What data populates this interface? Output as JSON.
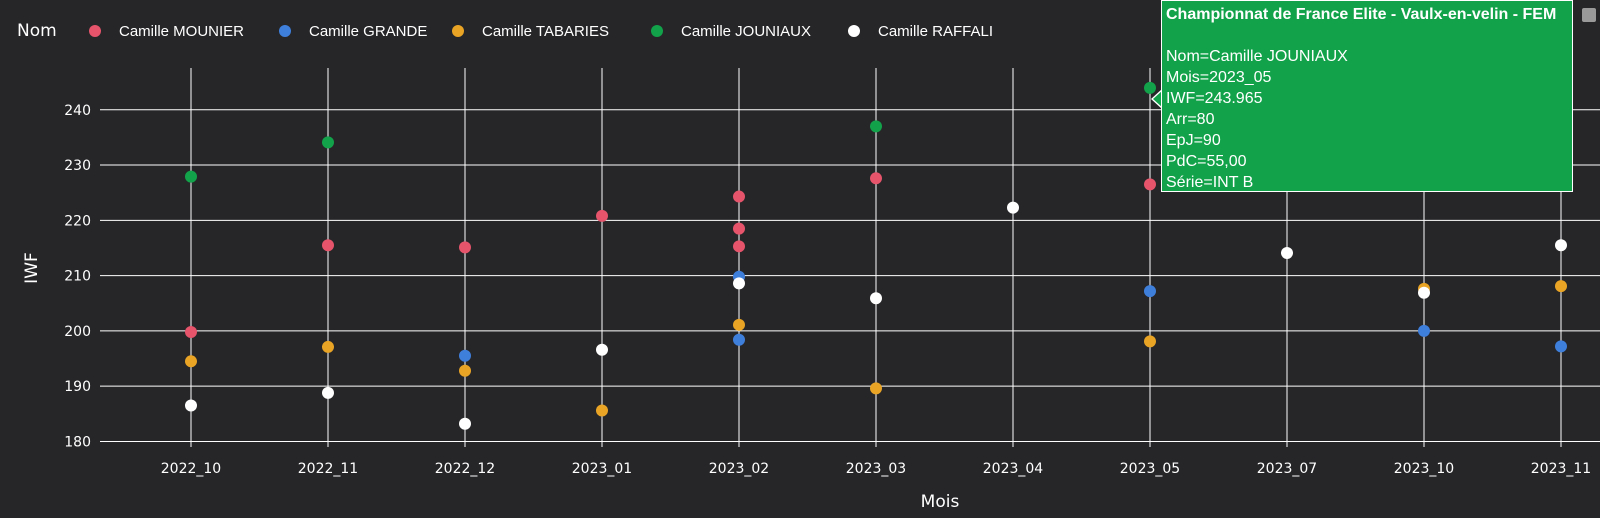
{
  "chart_data": {
    "type": "scatter",
    "legend_title": "Nom",
    "legend_placement": "top",
    "xlabel": "Mois",
    "ylabel": "IWF",
    "x_categories": [
      "2022_10",
      "2022_11",
      "2022_12",
      "2023_01",
      "2023_02",
      "2023_03",
      "2023_04",
      "2023_05",
      "2023_07",
      "2023_10",
      "2023_11"
    ],
    "ylim": [
      179,
      249
    ],
    "yticks": [
      180,
      190,
      200,
      210,
      220,
      230,
      240
    ],
    "grid": true,
    "series": [
      {
        "name": "Camille MOUNIER",
        "color": "#e5546b",
        "points": [
          [
            "2022_10",
            199.8
          ],
          [
            "2022_11",
            215.5
          ],
          [
            "2022_12",
            215.1
          ],
          [
            "2023_01",
            220.8
          ],
          [
            "2023_02",
            224.3
          ],
          [
            "2023_02",
            218.5
          ],
          [
            "2023_02",
            215.3
          ],
          [
            "2023_03",
            227.6
          ],
          [
            "2023_05",
            226.5
          ]
        ]
      },
      {
        "name": "Camille GRANDE",
        "color": "#3f7fdc",
        "points": [
          [
            "2022_12",
            195.5
          ],
          [
            "2023_02",
            209.8
          ],
          [
            "2023_02",
            198.4
          ],
          [
            "2023_05",
            207.2
          ],
          [
            "2023_10",
            200.0
          ],
          [
            "2023_11",
            197.2
          ]
        ]
      },
      {
        "name": "Camille TABARIES",
        "color": "#e9a425",
        "points": [
          [
            "2022_10",
            194.5
          ],
          [
            "2022_11",
            197.1
          ],
          [
            "2022_12",
            192.8
          ],
          [
            "2023_01",
            185.6
          ],
          [
            "2023_02",
            201.1
          ],
          [
            "2023_03",
            189.6
          ],
          [
            "2023_05",
            198.1
          ],
          [
            "2023_10",
            207.6
          ],
          [
            "2023_11",
            208.1
          ]
        ]
      },
      {
        "name": "Camille JOUNIAUX",
        "color": "#12a34a",
        "points": [
          [
            "2022_10",
            227.9
          ],
          [
            "2022_11",
            234.1
          ],
          [
            "2023_03",
            237.0
          ],
          [
            "2023_05",
            243.965
          ]
        ]
      },
      {
        "name": "Camille RAFFALI",
        "color": "#ffffff",
        "points": [
          [
            "2022_10",
            186.5
          ],
          [
            "2022_11",
            188.8
          ],
          [
            "2022_12",
            183.2
          ],
          [
            "2023_01",
            196.6
          ],
          [
            "2023_02",
            208.6
          ],
          [
            "2023_03",
            205.9
          ],
          [
            "2023_04",
            222.3
          ],
          [
            "2023_07",
            214.1
          ],
          [
            "2023_10",
            206.9
          ],
          [
            "2023_11",
            215.5
          ]
        ]
      }
    ]
  },
  "tooltip": {
    "title": "Championnat de France Elite - Vaulx-en-velin -  FEM",
    "lines": [
      "Nom=Camille JOUNIAUX",
      "Mois=2023_05",
      "IWF=243.965",
      "Arr=80",
      "EpJ=90",
      "PdC=55,00",
      "Série=INT B"
    ],
    "color": "#12a34a"
  }
}
